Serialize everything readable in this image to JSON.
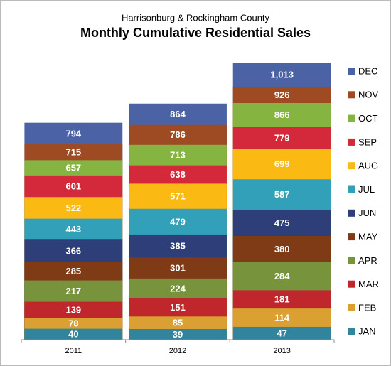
{
  "chart_data": {
    "type": "bar",
    "mode": "overlapping",
    "title": "Monthly Cumulative Residential Sales",
    "subtitle": "Harrisonburg & Rockingham County",
    "categories": [
      "2011",
      "2012",
      "2013"
    ],
    "ylim": [
      0,
      1100
    ],
    "legend": "right",
    "series": [
      {
        "name": "JAN",
        "color": "#31849b",
        "values": [
          40,
          39,
          47
        ]
      },
      {
        "name": "FEB",
        "color": "#dba032",
        "values": [
          78,
          85,
          114
        ]
      },
      {
        "name": "MAR",
        "color": "#c0272d",
        "values": [
          139,
          151,
          181
        ]
      },
      {
        "name": "APR",
        "color": "#77933c",
        "values": [
          217,
          224,
          284
        ]
      },
      {
        "name": "MAY",
        "color": "#7f3a16",
        "values": [
          285,
          301,
          380
        ]
      },
      {
        "name": "JUN",
        "color": "#2e3e79",
        "values": [
          366,
          385,
          475
        ]
      },
      {
        "name": "JUL",
        "color": "#31a0b8",
        "values": [
          443,
          479,
          587
        ]
      },
      {
        "name": "AUG",
        "color": "#fbb914",
        "values": [
          522,
          571,
          699
        ]
      },
      {
        "name": "SEP",
        "color": "#d3293a",
        "values": [
          601,
          638,
          779
        ]
      },
      {
        "name": "OCT",
        "color": "#86b441",
        "values": [
          657,
          713,
          866
        ]
      },
      {
        "name": "NOV",
        "color": "#9e4a23",
        "values": [
          715,
          786,
          926
        ]
      },
      {
        "name": "DEC",
        "color": "#4b62a5",
        "values": [
          794,
          864,
          1013
        ],
        "value_labels": [
          "794",
          "864",
          "1,013"
        ]
      }
    ]
  }
}
